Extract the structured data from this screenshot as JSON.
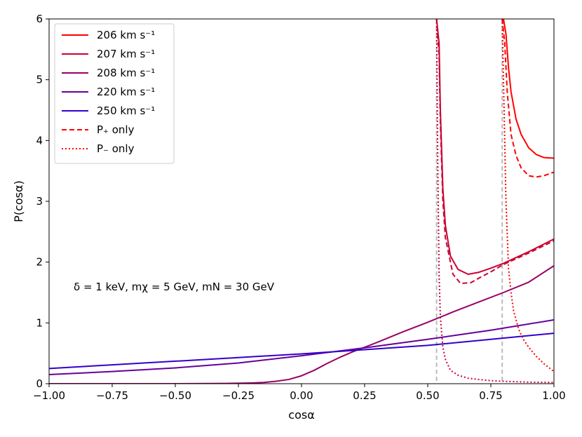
{
  "chart_data": {
    "type": "line",
    "title": "",
    "xlabel": "cosα",
    "ylabel": "P(cosα)",
    "xlim": [
      -1.0,
      1.0
    ],
    "ylim": [
      0,
      6
    ],
    "xticks": [
      -1.0,
      -0.75,
      -0.5,
      -0.25,
      0.0,
      0.25,
      0.5,
      0.75,
      1.0
    ],
    "xtick_labels": [
      "−1.00",
      "−0.75",
      "−0.50",
      "−0.25",
      "0.00",
      "0.25",
      "0.50",
      "0.75",
      "1.00"
    ],
    "yticks": [
      0,
      1,
      2,
      3,
      4,
      5,
      6
    ],
    "ytick_labels": [
      "0",
      "1",
      "2",
      "3",
      "4",
      "5",
      "6"
    ],
    "grid": false,
    "legend_position": "top-left",
    "annotation": "δ = 1 keV, mχ = 5 GeV, mN = 30 GeV",
    "vertical_reference_lines": {
      "color": "#bbbbbb",
      "style": "dashed",
      "x": [
        0.535,
        0.795
      ]
    },
    "series": [
      {
        "name": "206 km s⁻¹",
        "color": "#ff0000",
        "style": "solid",
        "x": [
          0.795,
          0.8,
          0.81,
          0.82,
          0.83,
          0.85,
          0.87,
          0.9,
          0.93,
          0.96,
          1.0
        ],
        "y": [
          6.0,
          6.0,
          5.75,
          5.2,
          4.8,
          4.35,
          4.1,
          3.88,
          3.77,
          3.72,
          3.71
        ]
      },
      {
        "name": "206 km s⁻¹ P+ only",
        "color": "#ff0000",
        "style": "dashed",
        "x": [
          0.795,
          0.805,
          0.815,
          0.83,
          0.85,
          0.87,
          0.9,
          0.93,
          0.96,
          1.0
        ],
        "y": [
          6.0,
          5.6,
          4.8,
          4.1,
          3.75,
          3.55,
          3.42,
          3.4,
          3.42,
          3.48
        ]
      },
      {
        "name": "206 km s⁻¹ P− only",
        "color": "#ff0000",
        "style": "dotted",
        "x": [
          0.795,
          0.8,
          0.81,
          0.82,
          0.83,
          0.84,
          0.86,
          0.88,
          0.9,
          0.93,
          0.96,
          1.0
        ],
        "y": [
          6.0,
          5.0,
          3.0,
          1.9,
          1.5,
          1.2,
          0.9,
          0.72,
          0.6,
          0.45,
          0.33,
          0.2
        ]
      },
      {
        "name": "207 km s⁻¹",
        "color": "#cc0033",
        "style": "solid",
        "x": [
          0.535,
          0.545,
          0.55,
          0.56,
          0.57,
          0.59,
          0.62,
          0.66,
          0.7,
          0.75,
          0.8,
          0.9,
          1.0
        ],
        "y": [
          6.0,
          5.6,
          4.5,
          3.2,
          2.6,
          2.1,
          1.88,
          1.8,
          1.83,
          1.9,
          1.98,
          2.17,
          2.38
        ]
      },
      {
        "name": "207 km s⁻¹ P+ only",
        "color": "#cc0033",
        "style": "dashed",
        "x": [
          0.535,
          0.545,
          0.55,
          0.56,
          0.57,
          0.6,
          0.63,
          0.67,
          0.7,
          0.75,
          0.8,
          0.9,
          1.0
        ],
        "y": [
          6.0,
          5.4,
          4.3,
          3.0,
          2.4,
          1.8,
          1.65,
          1.66,
          1.73,
          1.84,
          1.96,
          2.15,
          2.35
        ]
      },
      {
        "name": "207 km s⁻¹ P− only",
        "color": "#cc0033",
        "style": "dotted",
        "x": [
          0.535,
          0.54,
          0.545,
          0.55,
          0.56,
          0.57,
          0.59,
          0.62,
          0.66,
          0.7,
          0.75,
          0.8,
          0.9,
          1.0
        ],
        "y": [
          6.0,
          3.5,
          1.8,
          1.1,
          0.6,
          0.4,
          0.22,
          0.14,
          0.09,
          0.07,
          0.05,
          0.04,
          0.025,
          0.02
        ]
      },
      {
        "name": "208 km s⁻¹",
        "color": "#990066",
        "style": "solid",
        "x": [
          -1.0,
          -0.5,
          -0.3,
          -0.2,
          -0.15,
          -0.1,
          -0.05,
          0.0,
          0.05,
          0.1,
          0.15,
          0.2,
          0.25,
          0.3,
          0.4,
          0.5,
          0.6,
          0.7,
          0.8,
          0.9,
          1.0
        ],
        "y": [
          0.0,
          0.0,
          0.005,
          0.012,
          0.02,
          0.04,
          0.07,
          0.13,
          0.22,
          0.33,
          0.43,
          0.52,
          0.6,
          0.68,
          0.85,
          1.01,
          1.18,
          1.34,
          1.5,
          1.67,
          1.94
        ]
      },
      {
        "name": "220 km s⁻¹",
        "color": "#660099",
        "style": "solid",
        "x": [
          -1.0,
          -0.75,
          -0.5,
          -0.25,
          0.0,
          0.25,
          0.5,
          0.75,
          1.0
        ],
        "y": [
          0.15,
          0.2,
          0.26,
          0.34,
          0.46,
          0.59,
          0.73,
          0.88,
          1.05
        ]
      },
      {
        "name": "250 km s⁻¹",
        "color": "#3300cc",
        "style": "solid",
        "x": [
          -1.0,
          -0.75,
          -0.5,
          -0.25,
          0.0,
          0.25,
          0.5,
          0.75,
          1.0
        ],
        "y": [
          0.25,
          0.31,
          0.37,
          0.43,
          0.49,
          0.56,
          0.63,
          0.73,
          0.83
        ]
      }
    ],
    "legend": [
      {
        "label": "206 km s⁻¹",
        "color": "#ff0000",
        "style": "solid"
      },
      {
        "label": "207 km s⁻¹",
        "color": "#cc0033",
        "style": "solid"
      },
      {
        "label": "208 km s⁻¹",
        "color": "#990066",
        "style": "solid"
      },
      {
        "label": "220 km s⁻¹",
        "color": "#660099",
        "style": "solid"
      },
      {
        "label": "250 km s⁻¹",
        "color": "#3300cc",
        "style": "solid"
      },
      {
        "label": "P₊ only",
        "color": "#ff0000",
        "style": "dashed"
      },
      {
        "label": "P₋ only",
        "color": "#ff0000",
        "style": "dotted"
      }
    ]
  }
}
